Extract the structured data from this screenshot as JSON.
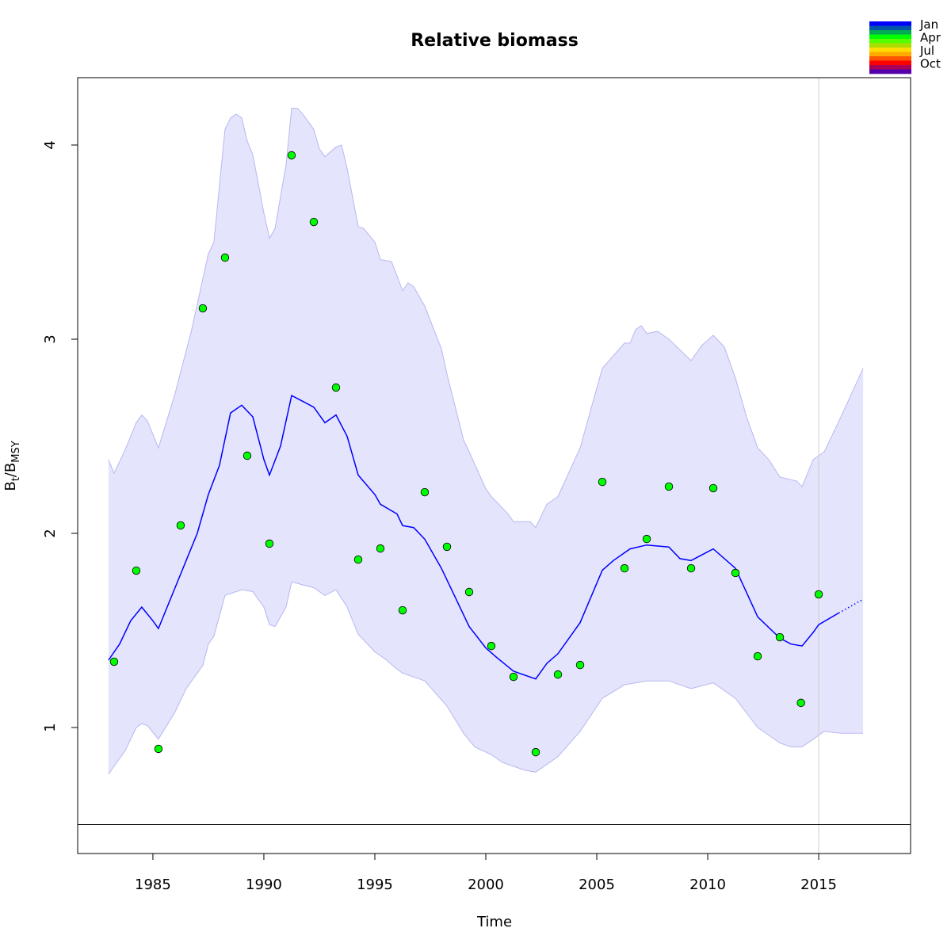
{
  "chart_data": {
    "type": "line",
    "title": "Relative biomass",
    "xlabel": "Time",
    "ylabel_main": "B",
    "ylabel_sub1": "t",
    "ylabel_sep": "/B",
    "ylabel_sub2": "MSY",
    "xlim": [
      1981.61,
      2019.14
    ],
    "ylim": [
      0.351,
      4.347
    ],
    "x_ticks": [
      1985,
      1990,
      1995,
      2000,
      2005,
      2010,
      2015
    ],
    "x_tick_labels": [
      "1985",
      "1990",
      "1995",
      "2000",
      "2005",
      "2010",
      "2015"
    ],
    "y_ticks": [
      1,
      2,
      3,
      4
    ],
    "y_tick_labels": [
      "1",
      "2",
      "3",
      "4"
    ],
    "reference_line_y": 0.5,
    "vertical_line_x": 2015.0,
    "legend": {
      "placement": "top-right-outside",
      "labels": [
        "Jan",
        "Apr",
        "Jul",
        "Oct"
      ],
      "colors": [
        "#0000ff",
        "#0055aa",
        "#00aa55",
        "#00ff00",
        "#55ff00",
        "#aadd00",
        "#ffdd00",
        "#ffaa00",
        "#ff5500",
        "#ff0000",
        "#aa0055",
        "#5500aa"
      ]
    },
    "colors": {
      "median": "#0000ff",
      "ci_fill": "#e4e4fd",
      "ci_line": "#b8b8f0",
      "points": "#00ff00",
      "vline": "#d0d0d0"
    },
    "observations": {
      "x": [
        1983.25,
        1984.25,
        1985.25,
        1986.25,
        1987.25,
        1988.25,
        1989.25,
        1990.25,
        1991.25,
        1992.25,
        1993.25,
        1994.25,
        1995.25,
        1996.25,
        1997.25,
        1998.25,
        1999.25,
        2000.25,
        2001.25,
        2002.25,
        2003.25,
        2004.25,
        2005.25,
        2006.25,
        2007.25,
        2008.25,
        2009.25,
        2010.25,
        2011.25,
        2012.25,
        2013.25,
        2014.2,
        2015.0
      ],
      "y": [
        1.339,
        1.808,
        0.89,
        2.041,
        3.159,
        3.42,
        2.4,
        1.947,
        3.947,
        3.604,
        2.751,
        1.865,
        1.922,
        1.604,
        2.212,
        1.931,
        1.698,
        1.42,
        1.261,
        0.873,
        1.273,
        1.322,
        2.265,
        1.82,
        1.971,
        2.241,
        1.82,
        2.233,
        1.796,
        1.367,
        1.465,
        1.127,
        1.686
      ]
    },
    "median": {
      "x": [
        1983,
        1983.5,
        1984,
        1984.5,
        1985,
        1985.25,
        1986,
        1986.5,
        1987,
        1987.5,
        1988,
        1988.5,
        1989,
        1989.5,
        1990,
        1990.25,
        1990.75,
        1991.25,
        1991.75,
        1992.25,
        1992.75,
        1993.25,
        1993.75,
        1994.25,
        1995,
        1995.25,
        1996,
        1996.25,
        1996.75,
        1997.25,
        1998,
        1998.25,
        1999,
        1999.25,
        2000,
        2000.5,
        2001.25,
        2002.25,
        2002.75,
        2003.25,
        2004.25,
        2005.25,
        2005.75,
        2006.5,
        2007.25,
        2008.25,
        2008.75,
        2009.25,
        2010.25,
        2011.25,
        2012.25,
        2013.25,
        2013.75,
        2014.25,
        2014.75,
        2015.0,
        2015.9
      ],
      "y": [
        1.347,
        1.43,
        1.55,
        1.62,
        1.55,
        1.51,
        1.72,
        1.86,
        2.0,
        2.2,
        2.35,
        2.62,
        2.66,
        2.6,
        2.38,
        2.3,
        2.45,
        2.71,
        2.68,
        2.65,
        2.57,
        2.61,
        2.5,
        2.3,
        2.2,
        2.15,
        2.1,
        2.04,
        2.03,
        1.97,
        1.82,
        1.76,
        1.58,
        1.52,
        1.41,
        1.36,
        1.29,
        1.25,
        1.33,
        1.38,
        1.54,
        1.81,
        1.86,
        1.92,
        1.94,
        1.93,
        1.87,
        1.86,
        1.92,
        1.82,
        1.57,
        1.46,
        1.43,
        1.42,
        1.49,
        1.53,
        1.59
      ]
    },
    "forecast": {
      "x": [
        2015.9,
        2017.0
      ],
      "y": [
        1.59,
        1.66
      ]
    },
    "ci_upper": {
      "x": [
        1983,
        1983.25,
        1983.75,
        1984.25,
        1984.5,
        1984.75,
        1985.25,
        1986,
        1986.75,
        1987.5,
        1987.75,
        1988.25,
        1988.5,
        1988.75,
        1989,
        1989.25,
        1989.5,
        1990,
        1990.25,
        1990.5,
        1991,
        1991.25,
        1991.5,
        1991.75,
        1992.25,
        1992.5,
        1992.75,
        1993.25,
        1993.5,
        1993.75,
        1994.25,
        1994.5,
        1995,
        1995.25,
        1995.75,
        1996.25,
        1996.5,
        1996.75,
        1997.25,
        1998,
        1998.25,
        1999,
        1999.25,
        2000,
        2000.25,
        2001,
        2001.25,
        2002,
        2002.25,
        2002.75,
        2003.25,
        2004.25,
        2005.25,
        2006.25,
        2006.5,
        2006.75,
        2007,
        2007.25,
        2007.75,
        2008.25,
        2009.25,
        2009.75,
        2010.25,
        2010.75,
        2011.25,
        2011.75,
        2012.25,
        2012.75,
        2013.25,
        2014,
        2014.25,
        2014.75,
        2015.25,
        2016,
        2017
      ],
      "y": [
        2.38,
        2.31,
        2.43,
        2.57,
        2.61,
        2.58,
        2.44,
        2.72,
        3.05,
        3.44,
        3.5,
        4.08,
        4.14,
        4.16,
        4.14,
        4.02,
        3.95,
        3.65,
        3.52,
        3.57,
        3.9,
        4.19,
        4.19,
        4.16,
        4.08,
        3.98,
        3.94,
        3.99,
        4.0,
        3.88,
        3.58,
        3.57,
        3.5,
        3.41,
        3.4,
        3.25,
        3.29,
        3.27,
        3.17,
        2.95,
        2.82,
        2.48,
        2.42,
        2.23,
        2.19,
        2.1,
        2.06,
        2.06,
        2.03,
        2.15,
        2.19,
        2.44,
        2.85,
        2.98,
        2.98,
        3.05,
        3.07,
        3.03,
        3.04,
        3.0,
        2.89,
        2.97,
        3.02,
        2.96,
        2.8,
        2.6,
        2.44,
        2.38,
        2.29,
        2.27,
        2.24,
        2.38,
        2.42,
        2.6,
        2.85
      ]
    },
    "ci_lower": {
      "x": [
        1983,
        1983.25,
        1983.75,
        1984.25,
        1984.5,
        1984.75,
        1985.25,
        1986,
        1986.5,
        1987.25,
        1987.5,
        1987.75,
        1988.25,
        1989,
        1989.5,
        1990,
        1990.25,
        1990.5,
        1991,
        1991.25,
        1992.25,
        1992.75,
        1993.25,
        1993.75,
        1994.25,
        1995,
        1995.5,
        1996,
        1996.25,
        1997.25,
        1998.25,
        1999,
        1999.5,
        2000.25,
        2000.75,
        2001.25,
        2001.75,
        2002.25,
        2003.25,
        2004.25,
        2005.25,
        2006.25,
        2007.25,
        2008.25,
        2009.25,
        2010.25,
        2011.25,
        2012.25,
        2013.25,
        2013.75,
        2014.25,
        2014.75,
        2015.25,
        2016,
        2017
      ],
      "y": [
        0.76,
        0.8,
        0.88,
        1.0,
        1.02,
        1.01,
        0.94,
        1.08,
        1.2,
        1.32,
        1.43,
        1.47,
        1.68,
        1.71,
        1.7,
        1.62,
        1.53,
        1.52,
        1.62,
        1.75,
        1.72,
        1.68,
        1.71,
        1.62,
        1.48,
        1.39,
        1.35,
        1.3,
        1.28,
        1.24,
        1.11,
        0.97,
        0.9,
        0.86,
        0.82,
        0.8,
        0.78,
        0.77,
        0.85,
        0.98,
        1.15,
        1.22,
        1.24,
        1.24,
        1.2,
        1.23,
        1.15,
        1.0,
        0.92,
        0.9,
        0.9,
        0.94,
        0.98,
        0.97,
        0.97
      ]
    }
  }
}
